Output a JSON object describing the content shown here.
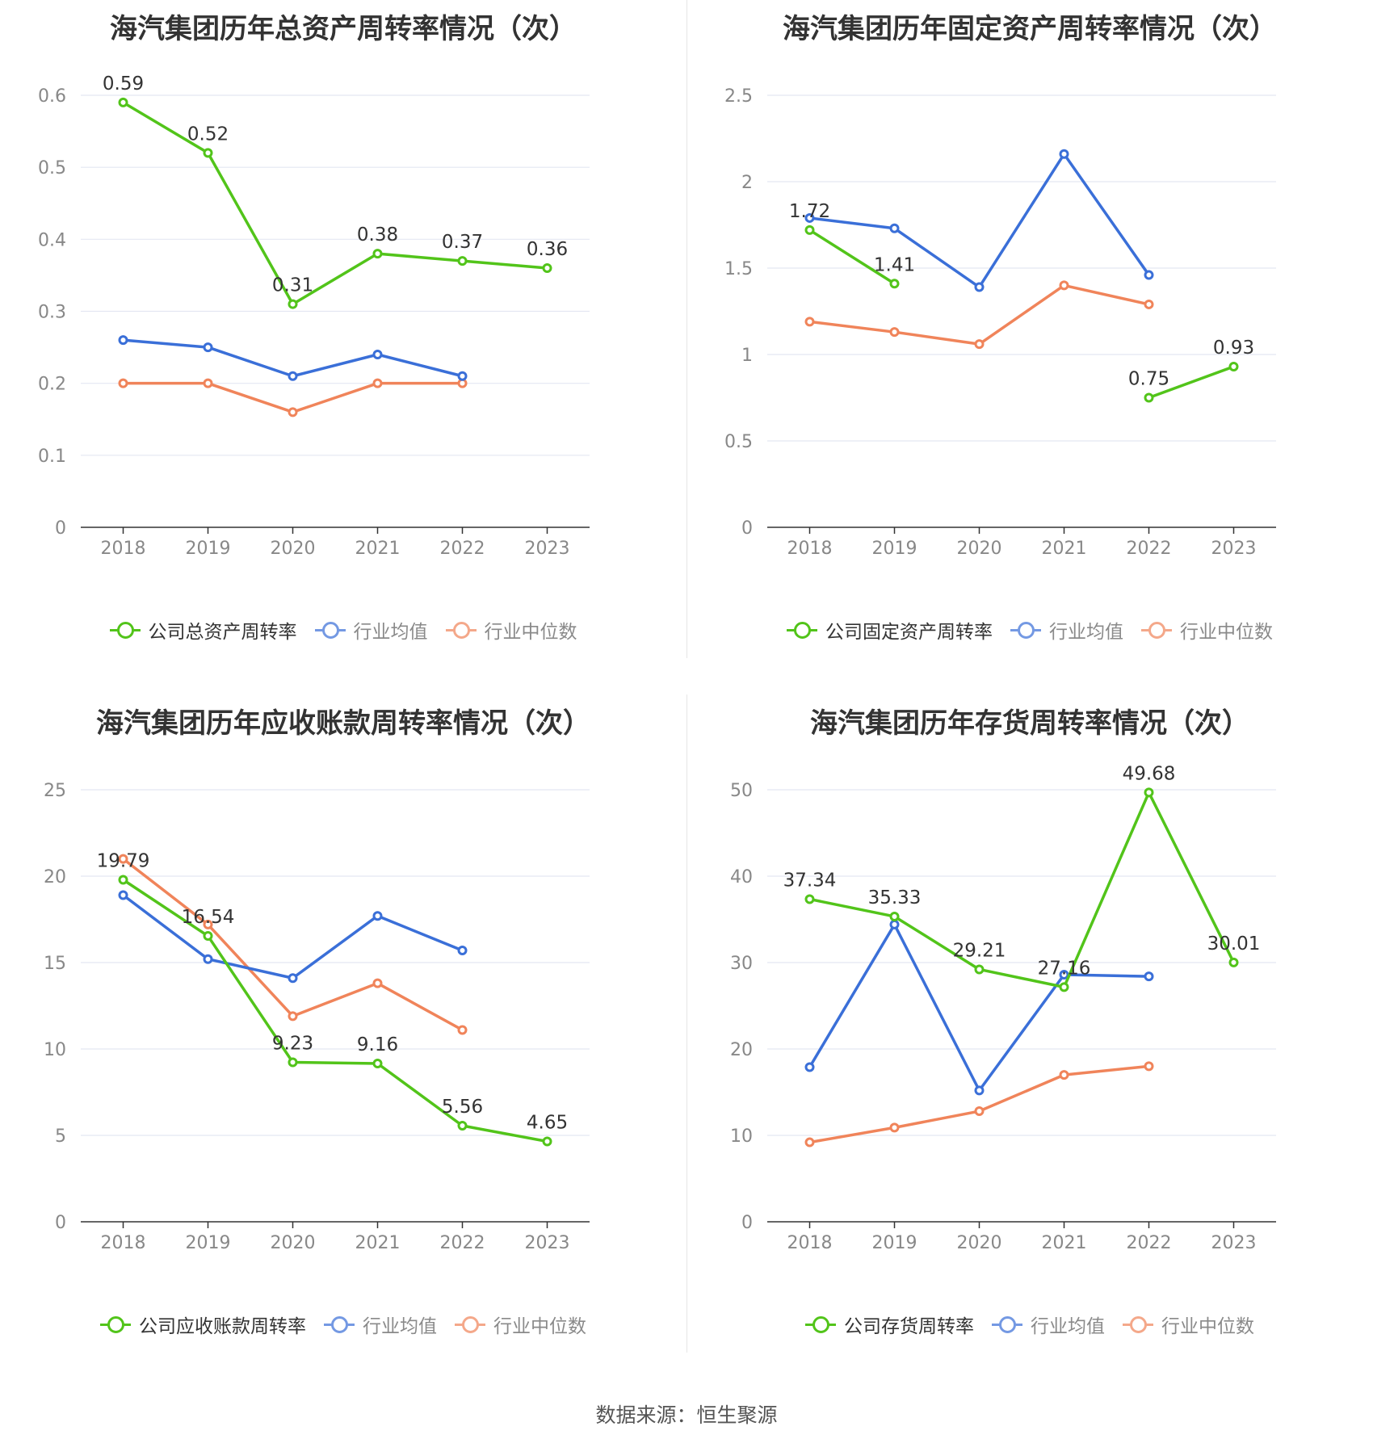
{
  "colors": {
    "company": "#52c41a",
    "average": "#3a6fd8",
    "median": "#f0845a",
    "grid": "#e4e7f2",
    "axis": "#333333"
  },
  "source": "数据来源：恒生聚源",
  "charts": [
    {
      "title": "海汽集团历年总资产周转率情况（次）",
      "legend": [
        "公司总资产周转率",
        "行业均值",
        "行业中位数"
      ],
      "y_ticks": [
        "0",
        "0.1",
        "0.2",
        "0.3",
        "0.4",
        "0.5",
        "0.6"
      ]
    },
    {
      "title": "海汽集团历年固定资产周转率情况（次）",
      "legend": [
        "公司固定资产周转率",
        "行业均值",
        "行业中位数"
      ],
      "y_ticks": [
        "0",
        "0.5",
        "1",
        "1.5",
        "2",
        "2.5"
      ]
    },
    {
      "title": "海汽集团历年应收账款周转率情况（次）",
      "legend": [
        "公司应收账款周转率",
        "行业均值",
        "行业中位数"
      ],
      "y_ticks": [
        "0",
        "5",
        "10",
        "15",
        "20",
        "25"
      ]
    },
    {
      "title": "海汽集团历年存货周转率情况（次）",
      "legend": [
        "公司存货周转率",
        "行业均值",
        "行业中位数"
      ],
      "y_ticks": [
        "0",
        "10",
        "20",
        "30",
        "40",
        "50"
      ]
    }
  ],
  "chart_data": [
    {
      "type": "line",
      "title": "海汽集团历年总资产周转率情况（次）",
      "categories": [
        "2018",
        "2019",
        "2020",
        "2021",
        "2022",
        "2023"
      ],
      "ylim": [
        0,
        0.6
      ],
      "grid": true,
      "legend_position": "bottom",
      "series": [
        {
          "name": "公司总资产周转率",
          "values": [
            0.59,
            0.52,
            0.31,
            0.38,
            0.37,
            0.36
          ],
          "labels": [
            "0.59",
            "0.52",
            "0.31",
            "0.38",
            "0.37",
            "0.36"
          ]
        },
        {
          "name": "行业均值",
          "values": [
            0.26,
            0.25,
            0.21,
            0.24,
            0.21,
            null
          ]
        },
        {
          "name": "行业中位数",
          "values": [
            0.2,
            0.2,
            0.16,
            0.2,
            0.2,
            null
          ]
        }
      ]
    },
    {
      "type": "line",
      "title": "海汽集团历年固定资产周转率情况（次）",
      "categories": [
        "2018",
        "2019",
        "2020",
        "2021",
        "2022",
        "2023"
      ],
      "ylim": [
        0,
        2.5
      ],
      "grid": true,
      "legend_position": "bottom",
      "series": [
        {
          "name": "公司固定资产周转率",
          "values": [
            1.72,
            1.41,
            null,
            null,
            0.75,
            0.93
          ],
          "labels": [
            "1.72",
            "1.41",
            null,
            null,
            "0.75",
            "0.93"
          ]
        },
        {
          "name": "行业均值",
          "values": [
            1.79,
            1.73,
            1.39,
            2.16,
            1.46,
            null
          ]
        },
        {
          "name": "行业中位数",
          "values": [
            1.19,
            1.13,
            1.06,
            1.4,
            1.29,
            null
          ]
        }
      ]
    },
    {
      "type": "line",
      "title": "海汽集团历年应收账款周转率情况（次）",
      "categories": [
        "2018",
        "2019",
        "2020",
        "2021",
        "2022",
        "2023"
      ],
      "ylim": [
        0,
        25
      ],
      "grid": true,
      "legend_position": "bottom",
      "series": [
        {
          "name": "公司应收账款周转率",
          "values": [
            19.79,
            16.54,
            9.23,
            9.16,
            5.56,
            4.65
          ],
          "labels": [
            "19.79",
            "16.54",
            "9.23",
            "9.16",
            "5.56",
            "4.65"
          ]
        },
        {
          "name": "行业均值",
          "values": [
            18.9,
            15.2,
            14.1,
            17.7,
            15.7,
            null
          ]
        },
        {
          "name": "行业中位数",
          "values": [
            21.0,
            17.2,
            11.9,
            13.8,
            11.1,
            null
          ]
        }
      ]
    },
    {
      "type": "line",
      "title": "海汽集团历年存货周转率情况（次）",
      "categories": [
        "2018",
        "2019",
        "2020",
        "2021",
        "2022",
        "2023"
      ],
      "ylim": [
        0,
        50
      ],
      "grid": true,
      "legend_position": "bottom",
      "series": [
        {
          "name": "公司存货周转率",
          "values": [
            37.34,
            35.33,
            29.21,
            27.16,
            49.68,
            30.01
          ],
          "labels": [
            "37.34",
            "35.33",
            "29.21",
            "27.16",
            "49.68",
            "30.01"
          ]
        },
        {
          "name": "行业均值",
          "values": [
            17.9,
            34.4,
            15.2,
            28.6,
            28.4,
            null
          ]
        },
        {
          "name": "行业中位数",
          "values": [
            9.2,
            10.9,
            12.8,
            17.0,
            18.0,
            null
          ]
        }
      ]
    }
  ]
}
